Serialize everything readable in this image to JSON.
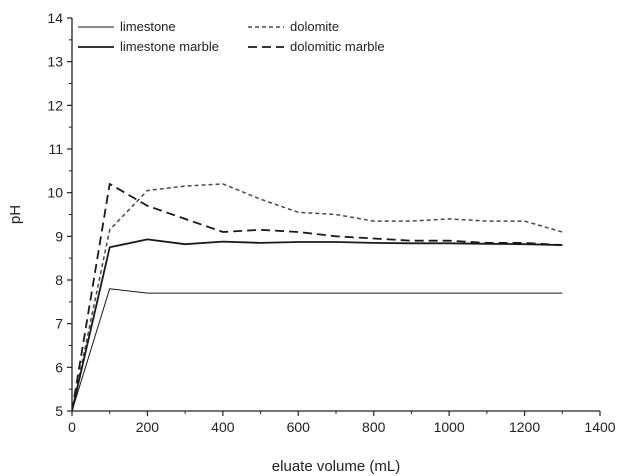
{
  "chart_data": {
    "type": "line",
    "title": "",
    "xlabel": "eluate volume (mL)",
    "ylabel": "pH",
    "xlim": [
      0,
      1400
    ],
    "ylim": [
      5,
      14
    ],
    "xticks": [
      0,
      200,
      400,
      600,
      800,
      1000,
      1200,
      1400
    ],
    "yticks": [
      5,
      6,
      7,
      8,
      9,
      10,
      11,
      12,
      13,
      14
    ],
    "grid": false,
    "legend_position": "top-left",
    "series": [
      {
        "name": "limestone",
        "style": "thin-solid",
        "color": "#1a1a1a",
        "x": [
          0,
          100,
          200,
          300,
          400,
          500,
          600,
          700,
          800,
          900,
          1000,
          1100,
          1200,
          1300
        ],
        "y": [
          5.0,
          7.8,
          7.7,
          7.7,
          7.7,
          7.7,
          7.7,
          7.7,
          7.7,
          7.7,
          7.7,
          7.7,
          7.7,
          7.7
        ]
      },
      {
        "name": "dolomite",
        "style": "short-dash",
        "color": "#4a4a4a",
        "x": [
          0,
          100,
          200,
          300,
          400,
          500,
          600,
          700,
          800,
          900,
          1000,
          1100,
          1200,
          1300
        ],
        "y": [
          5.0,
          9.15,
          10.05,
          10.15,
          10.2,
          9.85,
          9.55,
          9.5,
          9.35,
          9.35,
          9.4,
          9.35,
          9.35,
          9.1
        ]
      },
      {
        "name": "limestone marble",
        "style": "thick-solid",
        "color": "#1a1a1a",
        "x": [
          0,
          100,
          200,
          300,
          400,
          500,
          600,
          700,
          800,
          900,
          1000,
          1100,
          1200,
          1300
        ],
        "y": [
          5.0,
          8.75,
          8.93,
          8.82,
          8.88,
          8.85,
          8.87,
          8.87,
          8.85,
          8.84,
          8.84,
          8.83,
          8.82,
          8.8
        ]
      },
      {
        "name": "dolomitic marble",
        "style": "long-dash",
        "color": "#1a1a1a",
        "x": [
          0,
          100,
          200,
          300,
          400,
          500,
          600,
          700,
          800,
          900,
          1000,
          1100,
          1200,
          1300
        ],
        "y": [
          5.0,
          10.2,
          9.7,
          9.4,
          9.1,
          9.15,
          9.1,
          9.0,
          8.95,
          8.9,
          8.9,
          8.85,
          8.85,
          8.8
        ]
      }
    ]
  }
}
